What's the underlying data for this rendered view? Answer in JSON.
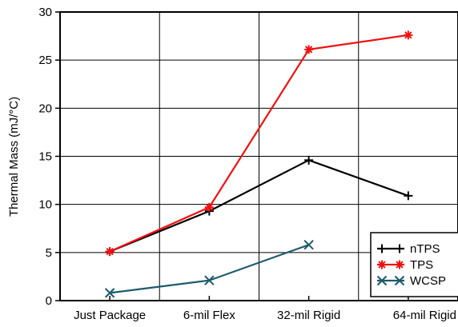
{
  "chart_data": {
    "type": "line",
    "title": "",
    "xlabel": "",
    "ylabel": "Thermal Mass (mJ/°C)",
    "categories": [
      "Just Package",
      "6-mil Flex",
      "32-mil Rigid",
      "64-mil Rigid"
    ],
    "ylim": [
      0,
      30
    ],
    "yticks": [
      0,
      5,
      10,
      15,
      20,
      25,
      30
    ],
    "grid": true,
    "legend_position": "bottom-right",
    "series": [
      {
        "name": "nTPS",
        "values": [
          5.1,
          9.3,
          14.6,
          10.9
        ],
        "color": "#000000",
        "marker": "plus"
      },
      {
        "name": "TPS",
        "values": [
          5.1,
          9.7,
          26.1,
          27.6
        ],
        "color": "#ee1111",
        "marker": "asterisk"
      },
      {
        "name": "WCSP",
        "values": [
          0.8,
          2.1,
          5.8,
          null
        ],
        "color": "#1d5a6b",
        "marker": "cross"
      }
    ]
  }
}
